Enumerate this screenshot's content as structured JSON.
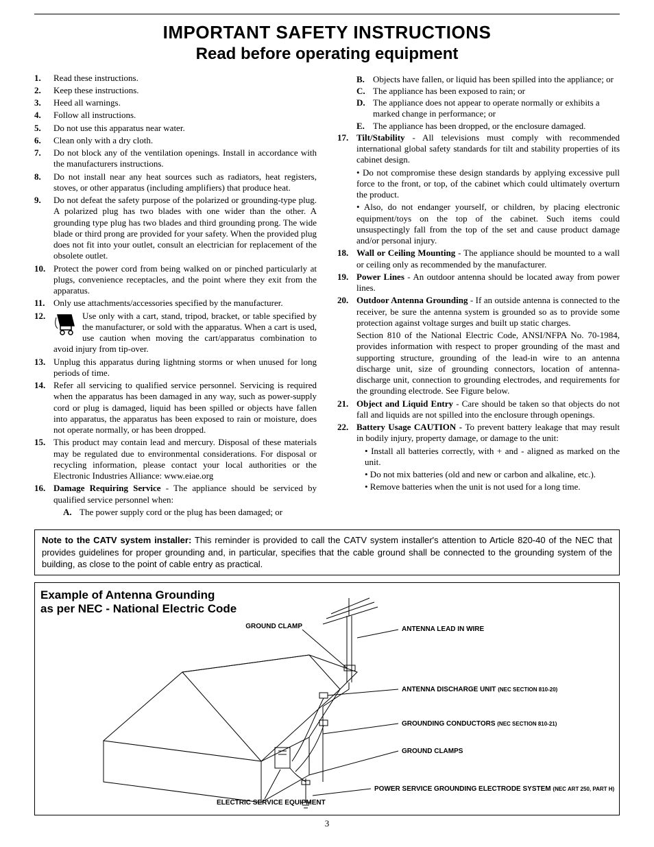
{
  "title_line1": "IMPORTANT SAFETY INSTRUCTIONS",
  "title_line2": "Read before operating equipment",
  "page_number": "3",
  "colors": {
    "text": "#000000",
    "background": "#ffffff",
    "rule": "#000000",
    "border": "#000000"
  },
  "typography": {
    "body_family": "Times New Roman",
    "heading_family": "Arial",
    "body_size_pt": 10,
    "title_size_pt": 20
  },
  "left_items": [
    {
      "n": "1.",
      "text": "Read these instructions."
    },
    {
      "n": "2.",
      "text": "Keep these instructions."
    },
    {
      "n": "3.",
      "text": "Heed all warnings."
    },
    {
      "n": "4.",
      "text": "Follow all instructions."
    },
    {
      "n": "5.",
      "text": "Do not use this apparatus near water."
    },
    {
      "n": "6.",
      "text": "Clean only with a dry cloth."
    },
    {
      "n": "7.",
      "text": "Do not block any of the ventilation openings. Install in accordance with the manufacturers instructions."
    },
    {
      "n": "8.",
      "text": "Do not install near any heat sources such as radiators, heat registers, stoves, or other apparatus (including amplifiers) that produce heat."
    },
    {
      "n": "9.",
      "text": "Do not defeat the safety purpose of the polarized or grounding-type plug. A polarized plug has two blades with one wider than the other. A grounding type plug has two blades and third grounding prong. The wide blade or third prong are provided for your safety. When the provided plug does not fit into your outlet, consult an electrician for replacement of the obsolete outlet."
    },
    {
      "n": "10.",
      "text": "Protect the power cord from being walked on or pinched particularly at plugs, convenience receptacles, and the point where they exit from the apparatus."
    },
    {
      "n": "11.",
      "text": "Only use attachments/accessories specified by the manufacturer."
    },
    {
      "n": "12.",
      "text": "Use only with a cart, stand, tripod, bracket, or table specified by the manufacturer, or sold with the apparatus. When a cart is used, use caution when moving the cart/apparatus combination to avoid injury from tip-over."
    },
    {
      "n": "13.",
      "text": "Unplug this apparatus during lightning storms or when unused for long periods of time."
    },
    {
      "n": "14.",
      "text": "Refer all servicing to qualified service personnel. Servicing is required when the apparatus has been damaged in any way, such as power-supply cord or plug is damaged, liquid has been spilled or objects have fallen into apparatus, the apparatus has been exposed to rain or moisture, does not operate normally, or has been dropped."
    },
    {
      "n": "15.",
      "text": "This product may contain lead and mercury. Disposal of these materials may be regulated due to environmental considerations. For disposal or recycling information, please contact your local authorities or the Electronic Industries Alliance: www.eiae.org"
    },
    {
      "n": "16.",
      "lead": "Damage Requiring Service",
      "text": " - The appliance should be serviced by qualified service personnel when:",
      "sub": [
        {
          "s": "A.",
          "t": "The power supply cord or the plug has been damaged; or"
        }
      ]
    }
  ],
  "right_continue_sub": [
    {
      "s": "B.",
      "t": "Objects have fallen, or liquid has been spilled into the appliance; or"
    },
    {
      "s": "C.",
      "t": "The appliance has been exposed to rain; or"
    },
    {
      "s": "D.",
      "t": "The appliance does not appear to operate normally or exhibits a marked change in performance; or"
    },
    {
      "s": "E.",
      "t": "The appliance has been dropped, or the enclosure damaged."
    }
  ],
  "right_items": [
    {
      "n": "17.",
      "lead": "Tilt/Stability",
      "text": " - All televisions must comply with recommended international global safety standards for tilt and stability properties of its cabinet design.",
      "paragraphs": [
        "• Do not compromise these design standards by applying excessive pull force to the front, or top, of the cabinet which could ultimately overturn the product.",
        "• Also, do not endanger yourself, or children, by placing electronic equipment/toys on the top of the cabinet. Such items could unsuspectingly fall from the top of the set and cause product damage and/or personal injury."
      ]
    },
    {
      "n": "18.",
      "lead": "Wall or Ceiling Mounting",
      "text": " - The appliance should be mounted to a wall or ceiling only as recommended by the manufacturer."
    },
    {
      "n": "19.",
      "lead": "Power Lines",
      "text": " - An outdoor antenna should be located away from power lines."
    },
    {
      "n": "20.",
      "lead": "Outdoor Antenna Grounding",
      "text": " - If an outside antenna is connected to the receiver, be sure the antenna system is grounded so as to provide some protection against voltage surges and built up static charges.",
      "paragraphs": [
        "Section 810 of the National Electric Code, ANSI/NFPA No. 70-1984, provides information with respect to proper grounding of the mast and supporting structure, grounding of the lead-in wire to an antenna discharge unit, size of grounding connectors, location of antenna-discharge unit, connection to grounding electrodes, and requirements for the grounding electrode. See Figure below."
      ]
    },
    {
      "n": "21.",
      "lead": "Object and Liquid Entry",
      "text": " - Care should be taken so that objects do not fall and liquids are not spilled into the enclosure through openings."
    },
    {
      "n": "22.",
      "lead": "Battery Usage CAUTION - ",
      "text": "To prevent battery leakage that may result in bodily injury, property damage, or damage to the unit:",
      "bullets": [
        "• Install all batteries correctly, with + and - aligned as marked on the unit.",
        "• Do not mix batteries (old and new or carbon and alkaline, etc.).",
        "• Remove batteries when the unit is not used for a long time."
      ]
    }
  ],
  "note": {
    "lead": "Note to the CATV system installer:",
    "text": " This reminder is provided to call the CATV system installer's attention to Article 820-40 of the NEC that provides guidelines for proper grounding and, in particular, specifies that the cable ground shall be connected to the grounding system of the building, as close to the point of cable entry as practical."
  },
  "diagram": {
    "title_l1": "Example of Antenna Grounding",
    "title_l2": "as per NEC - National Electric Code",
    "labels": {
      "ground_clamp_top": "GROUND CLAMP",
      "antenna_lead": "ANTENNA LEAD IN WIRE",
      "discharge_unit": "ANTENNA DISCHARGE UNIT",
      "discharge_unit_sec": "(NEC SECTION 810-20)",
      "grounding_conductors": "GROUNDING CONDUCTORS",
      "grounding_conductors_sec": "(NEC SECTION 810-21)",
      "ground_clamps": "GROUND CLAMPS",
      "electric_service": "ELECTRIC SERVICE EQUIPMENT",
      "power_service": "POWER SERVICE GROUNDING ELECTRODE SYSTEM",
      "power_service_sec": "(NEC ART 250, PART H)"
    },
    "style": {
      "stroke": "#000000",
      "stroke_width": 1,
      "title_fontsize": 17,
      "label_fontsize": 10,
      "label_small_fontsize": 8
    }
  }
}
